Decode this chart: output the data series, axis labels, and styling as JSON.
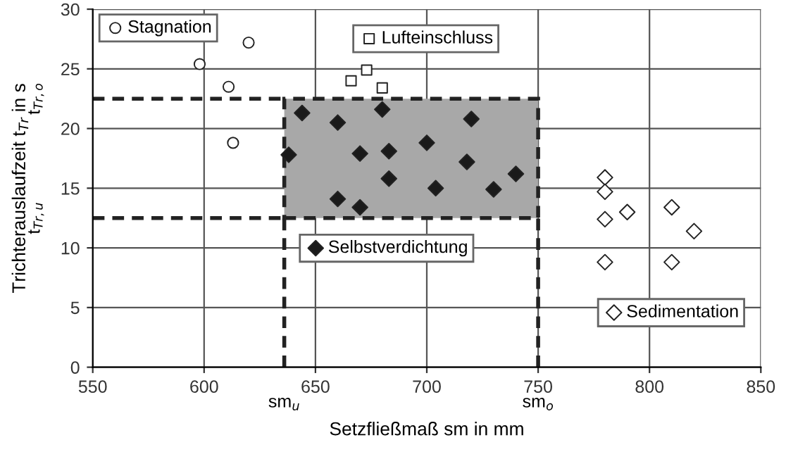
{
  "chart_data": {
    "type": "scatter",
    "xlabel": "Setzfließmaß sm in mm",
    "ylabel": "Trichterauslaufzeit t$_{Tr}$ in s",
    "xlim": [
      550,
      850
    ],
    "xticks": [
      550,
      600,
      650,
      700,
      750,
      800,
      850
    ],
    "ylim": [
      0,
      30
    ],
    "yticks": [
      0,
      5,
      10,
      15,
      20,
      25,
      30
    ],
    "grid": true,
    "legend": "top left",
    "series": [
      {
        "name": "Stagnation",
        "color": "#ffffff",
        "marker": "circle",
        "x": [
          620,
          598,
          611,
          613
        ],
        "values": [
          27.2,
          25.4,
          23.5,
          18.8
        ]
      },
      {
        "name": "Lufteinschluss",
        "color": "#ffffff",
        "marker": "square",
        "x": [
          673,
          666,
          680
        ],
        "values": [
          24.9,
          24.0,
          23.4
        ]
      },
      {
        "name": "Selbstverdichtung",
        "color": "#1a1a1a",
        "marker": "diamond",
        "x": [
          638,
          644,
          660,
          680,
          670,
          683,
          683,
          660,
          670,
          700,
          704,
          720,
          718,
          730,
          740
        ],
        "values": [
          17.8,
          21.3,
          20.5,
          21.6,
          17.9,
          18.1,
          15.8,
          14.1,
          13.4,
          18.8,
          15.0,
          20.8,
          17.2,
          14.9,
          16.2
        ]
      },
      {
        "name": "Sedimentation",
        "color": "#ffffff",
        "marker": "diamond",
        "x": [
          780,
          780,
          780,
          790,
          810,
          820,
          780,
          810
        ],
        "values": [
          15.9,
          14.7,
          12.4,
          13.0,
          13.4,
          11.4,
          8.8,
          8.8
        ]
      }
    ],
    "ref_lines": [
      {
        "axis": "y",
        "value": 22.5,
        "label": "t$_{Tr,o}$",
        "line_style": "dashed",
        "color": "#222222"
      },
      {
        "axis": "y",
        "value": 12.5,
        "label": "t$_{Tr,u}$",
        "line_style": "dashed",
        "color": "#222222"
      },
      {
        "axis": "x",
        "value": 636,
        "label": "sm$_{u}$",
        "line_style": "dashed",
        "color": "#222222"
      },
      {
        "axis": "x",
        "value": 750,
        "label": "sm$_{o}$",
        "line_style": "dashed",
        "color": "#222222"
      }
    ],
    "bands": [
      {
        "axis": "x",
        "from": 636,
        "to": 750,
        "color": "#a8a8a8"
      }
    ]
  }
}
